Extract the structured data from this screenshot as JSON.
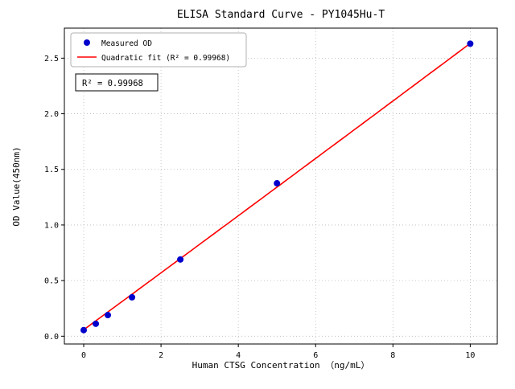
{
  "chart_data": {
    "type": "scatter",
    "title": "ELISA Standard Curve - PY1045Hu-T",
    "xlabel": "Human CTSG Concentration （ng/mL）",
    "ylabel": "OD Value(450nm)",
    "xlim": [
      -0.5,
      10.7
    ],
    "ylim": [
      -0.07,
      2.77
    ],
    "x_ticks": [
      0,
      2,
      4,
      6,
      8,
      10
    ],
    "y_ticks": [
      0,
      0.5,
      1,
      1.5,
      2,
      2.5
    ],
    "grid": true,
    "grid_style": "dotted",
    "legend_position": "upper-left",
    "series": [
      {
        "name": "Measured OD",
        "type": "scatter",
        "color": "#0000cd",
        "x": [
          0,
          0.313,
          0.625,
          1.25,
          2.5,
          5,
          10
        ],
        "y": [
          0.055,
          0.112,
          0.19,
          0.35,
          0.69,
          1.375,
          2.63
        ]
      },
      {
        "name": "Quadratic fit (R² = 0.99968)",
        "type": "line",
        "color": "#ff0000",
        "fit_coefficients": [
          0.0002,
          0.2555,
          0.058
        ],
        "x_range": [
          0,
          10
        ]
      }
    ],
    "annotation": {
      "text": "R² = 0.99968"
    },
    "r_squared": 0.99968
  }
}
